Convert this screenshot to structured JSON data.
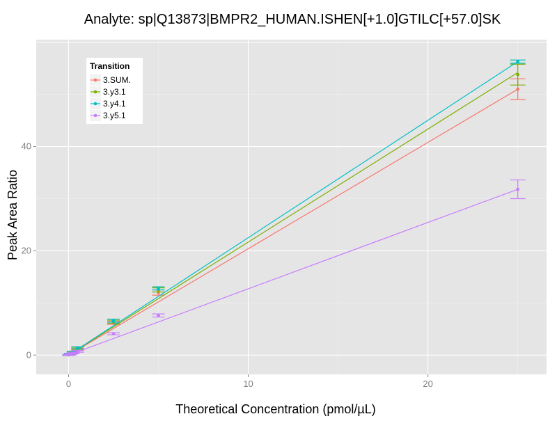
{
  "chart_data": {
    "type": "line",
    "title": "Analyte: sp|Q13873|BMPR2_HUMAN.ISHEN[+1.0]GTILC[+57.0]SK",
    "xlabel": "Theoretical Concentration (pmol/µL)",
    "ylabel": "Peak Area Ratio",
    "xlim": [
      -1.8,
      26.6
    ],
    "ylim": [
      -3.7,
      60.5
    ],
    "xticks": [
      0,
      10,
      20
    ],
    "yticks": [
      0,
      20,
      40
    ],
    "grid": true,
    "background": "#e5e5e5",
    "legend": {
      "title": "Transition",
      "position": "top-left"
    },
    "series": [
      {
        "name": "3.SUM.",
        "color": "#f8766d",
        "points": [
          {
            "x": 0.0,
            "y": 0.05,
            "err": 0.1
          },
          {
            "x": 0.1,
            "y": 0.2,
            "err": 0.1
          },
          {
            "x": 0.25,
            "y": 0.5,
            "err": 0.15
          },
          {
            "x": 0.5,
            "y": 1.1,
            "err": 0.2
          },
          {
            "x": 2.5,
            "y": 6.2,
            "err": 0.3
          },
          {
            "x": 5.0,
            "y": 12.0,
            "err": 0.5
          },
          {
            "x": 25.0,
            "y": 51.0,
            "err": 2.0
          }
        ],
        "fit": [
          [
            0,
            0.0
          ],
          [
            25,
            51.0
          ]
        ]
      },
      {
        "name": "3.y3.1",
        "color": "#7cae00",
        "points": [
          {
            "x": 0.0,
            "y": 0.05,
            "err": 0.1
          },
          {
            "x": 0.1,
            "y": 0.25,
            "err": 0.1
          },
          {
            "x": 0.25,
            "y": 0.6,
            "err": 0.15
          },
          {
            "x": 0.5,
            "y": 1.3,
            "err": 0.2
          },
          {
            "x": 2.5,
            "y": 6.4,
            "err": 0.3
          },
          {
            "x": 5.0,
            "y": 12.5,
            "err": 0.4
          },
          {
            "x": 25.0,
            "y": 53.8,
            "err": 2.0
          }
        ],
        "fit": [
          [
            0,
            0.0
          ],
          [
            25,
            54.2
          ]
        ]
      },
      {
        "name": "3.y4.1",
        "color": "#00bfc4",
        "points": [
          {
            "x": 0.0,
            "y": 0.05,
            "err": 0.1
          },
          {
            "x": 0.1,
            "y": 0.25,
            "err": 0.1
          },
          {
            "x": 0.25,
            "y": 0.6,
            "err": 0.15
          },
          {
            "x": 0.5,
            "y": 1.4,
            "err": 0.2
          },
          {
            "x": 2.5,
            "y": 6.6,
            "err": 0.3
          },
          {
            "x": 5.0,
            "y": 12.8,
            "err": 0.3
          },
          {
            "x": 25.0,
            "y": 56.3,
            "err": 0.3
          }
        ],
        "fit": [
          [
            0,
            0.0
          ],
          [
            25,
            56.3
          ]
        ]
      },
      {
        "name": "3.y5.1",
        "color": "#c77cff",
        "points": [
          {
            "x": 0.0,
            "y": 0.05,
            "err": 0.1
          },
          {
            "x": 0.1,
            "y": 0.15,
            "err": 0.1
          },
          {
            "x": 0.25,
            "y": 0.35,
            "err": 0.1
          },
          {
            "x": 0.5,
            "y": 0.7,
            "err": 0.15
          },
          {
            "x": 2.5,
            "y": 4.1,
            "err": 0.2
          },
          {
            "x": 5.0,
            "y": 7.6,
            "err": 0.3
          },
          {
            "x": 25.0,
            "y": 31.8,
            "err": 1.8
          }
        ],
        "fit": [
          [
            0,
            0.0
          ],
          [
            25,
            31.8
          ]
        ]
      }
    ]
  }
}
